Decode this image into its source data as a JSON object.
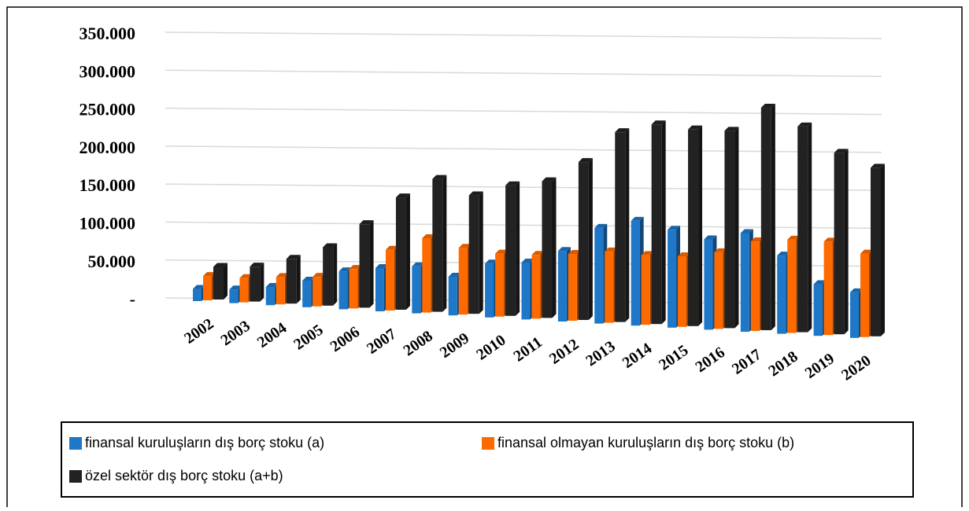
{
  "chart_data": {
    "type": "bar3d",
    "categories": [
      "2002",
      "2003",
      "2004",
      "2005",
      "2006",
      "2007",
      "2008",
      "2009",
      "2010",
      "2011",
      "2012",
      "2013",
      "2014",
      "2015",
      "2016",
      "2017",
      "2018",
      "2019",
      "2020"
    ],
    "series": [
      {
        "name": "finansal kuruluşların dış borç stoku (a)",
        "color": "#1f77c8",
        "values": [
          16000,
          18000,
          24000,
          35000,
          50000,
          57000,
          62000,
          51000,
          71000,
          75000,
          93000,
          126000,
          138000,
          129000,
          119000,
          130000,
          103000,
          68000,
          60000
        ]
      },
      {
        "name": "finansal olmayan kuruluşların dış borç stoku (b)",
        "color": "#ff6a00",
        "values": [
          32000,
          32000,
          36000,
          39000,
          52000,
          80000,
          98000,
          88000,
          83000,
          84000,
          88000,
          94000,
          92000,
          93000,
          101000,
          118000,
          123000,
          123000,
          110000
        ]
      },
      {
        "name": "özel sektör dış borç stoku (a+b)",
        "color": "#222222",
        "values": [
          43000,
          46000,
          59000,
          77000,
          110000,
          148000,
          175000,
          156000,
          172000,
          180000,
          208000,
          250000,
          263000,
          259000,
          260000,
          293000,
          271000,
          239000,
          222000
        ]
      }
    ],
    "ylim": [
      0,
      350000
    ],
    "yticks": [
      {
        "value": 0,
        "label": "-"
      },
      {
        "value": 50000,
        "label": "50.000"
      },
      {
        "value": 100000,
        "label": "100.000"
      },
      {
        "value": 150000,
        "label": "150.000"
      },
      {
        "value": 200000,
        "label": "200.000"
      },
      {
        "value": 250000,
        "label": "250.000"
      },
      {
        "value": 300000,
        "label": "300.000"
      },
      {
        "value": 350000,
        "label": "350.000"
      }
    ],
    "grid": true
  }
}
